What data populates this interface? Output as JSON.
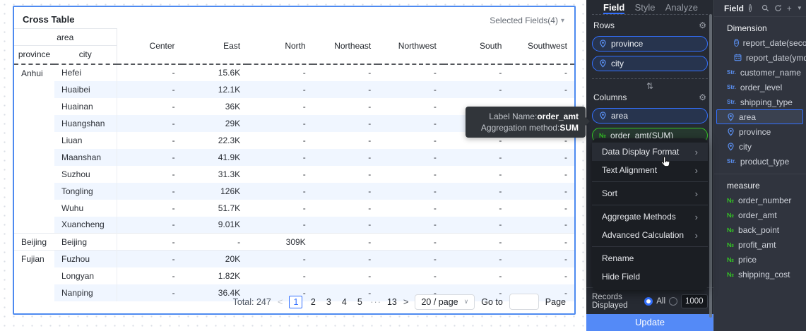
{
  "colors": {
    "accent_blue": "#3370ff",
    "measure_green": "#34c724",
    "update_button": "#548af7",
    "row_stripe": "#f0f6ff",
    "card_border": "#4d8af0",
    "panel_dark": "#262a32",
    "panel_right": "#30343e",
    "menu_bg": "#1b1e23"
  },
  "icons": {
    "caret_down": "▾",
    "select_caret": "∨",
    "swap": "⇅",
    "gear": "⚙",
    "plus": "+",
    "filter": "▼",
    "prev": "<",
    "next": ">",
    "info": "i",
    "str": "Str.",
    "num": "№",
    "clock_s": "S"
  },
  "table": {
    "title": "Cross Table",
    "selected_fields_label": "Selected Fields(4)",
    "corner_group": "area",
    "row_headers": [
      "province",
      "city"
    ],
    "data_columns": [
      "Center",
      "East",
      "North",
      "Northeast",
      "Northwest",
      "South",
      "Southwest"
    ],
    "groups": [
      {
        "province": "Anhui",
        "rows": [
          {
            "city": "Hefei",
            "values": [
              "-",
              "15.6K",
              "-",
              "-",
              "-",
              "-",
              "-"
            ]
          },
          {
            "city": "Huaibei",
            "values": [
              "-",
              "12.1K",
              "-",
              "-",
              "-",
              "-",
              "-"
            ]
          },
          {
            "city": "Huainan",
            "values": [
              "-",
              "36K",
              "-",
              "-",
              "-",
              "-",
              "-"
            ]
          },
          {
            "city": "Huangshan",
            "values": [
              "-",
              "29K",
              "-",
              "-",
              "-",
              "-",
              "-"
            ]
          },
          {
            "city": "Liuan",
            "values": [
              "-",
              "22.3K",
              "-",
              "-",
              "-",
              "-",
              "-"
            ]
          },
          {
            "city": "Maanshan",
            "values": [
              "-",
              "41.9K",
              "-",
              "-",
              "-",
              "-",
              "-"
            ]
          },
          {
            "city": "Suzhou",
            "values": [
              "-",
              "31.3K",
              "-",
              "-",
              "-",
              "-",
              "-"
            ]
          },
          {
            "city": "Tongling",
            "values": [
              "-",
              "126K",
              "-",
              "-",
              "-",
              "-",
              "-"
            ]
          },
          {
            "city": "Wuhu",
            "values": [
              "-",
              "51.7K",
              "-",
              "-",
              "-",
              "-",
              "-"
            ]
          },
          {
            "city": "Xuancheng",
            "values": [
              "-",
              "9.01K",
              "-",
              "-",
              "-",
              "-",
              "-"
            ]
          }
        ]
      },
      {
        "province": "Beijing",
        "rows": [
          {
            "city": "Beijing",
            "values": [
              "-",
              "-",
              "309K",
              "-",
              "-",
              "-",
              "-"
            ]
          }
        ]
      },
      {
        "province": "Fujian",
        "rows": [
          {
            "city": "Fuzhou",
            "values": [
              "-",
              "20K",
              "-",
              "-",
              "-",
              "-",
              "-"
            ]
          },
          {
            "city": "Longyan",
            "values": [
              "-",
              "1.82K",
              "-",
              "-",
              "-",
              "-",
              "-"
            ]
          },
          {
            "city": "Nanping",
            "values": [
              "-",
              "36.4K",
              "-",
              "-",
              "-",
              "-",
              "-"
            ]
          }
        ]
      }
    ]
  },
  "pagination": {
    "total": "Total: 247",
    "pages": [
      "1",
      "2",
      "3",
      "4",
      "5",
      "···",
      "13"
    ],
    "active_page": "1",
    "page_size": "20 / page",
    "goto_label": "Go to",
    "goto_value": "",
    "page_suffix": "Page"
  },
  "tooltip": {
    "line1_label": "Label Name:",
    "line1_value": "order_amt",
    "line2_label": "Aggregation method:",
    "line2_value": "SUM"
  },
  "mid_panel": {
    "tabs": [
      {
        "label": "Field",
        "active": true
      },
      {
        "label": "Style",
        "active": false
      },
      {
        "label": "Analyze",
        "active": false
      }
    ],
    "rows_section": {
      "label": "Rows",
      "pills": [
        {
          "label": "province",
          "icon": "pin",
          "color": "blue"
        },
        {
          "label": "city",
          "icon": "pin",
          "color": "blue"
        }
      ]
    },
    "columns_section": {
      "label": "Columns",
      "pills": [
        {
          "label": "area",
          "icon": "pin",
          "color": "blue"
        },
        {
          "label": "order_amt(SUM)",
          "icon": "num",
          "color": "green"
        }
      ]
    },
    "menu": [
      {
        "label": "Data Display Format",
        "submenu": true,
        "hover": true
      },
      {
        "label": "Text Alignment",
        "submenu": true
      },
      {
        "divider": true
      },
      {
        "label": "Sort",
        "submenu": true
      },
      {
        "divider": true
      },
      {
        "label": "Aggregate Methods",
        "submenu": true
      },
      {
        "label": "Advanced Calculation",
        "submenu": true
      },
      {
        "divider": true
      },
      {
        "label": "Rename"
      },
      {
        "label": "Hide Field"
      }
    ],
    "records": {
      "label": "Records Displayed",
      "options": [
        {
          "label": "All",
          "selected": true
        },
        {
          "label": "",
          "selected": false
        }
      ],
      "input_value": "1000"
    },
    "update_label": "Update"
  },
  "fields_panel": {
    "title": "Field",
    "sections": [
      {
        "label": "Dimension",
        "items": [
          {
            "label": "report_date(second)",
            "icon": "clock",
            "indent": true
          },
          {
            "label": "report_date(ymdh...",
            "icon": "calendar",
            "indent": true
          },
          {
            "label": "customer_name",
            "icon": "str"
          },
          {
            "label": "order_level",
            "icon": "str"
          },
          {
            "label": "shipping_type",
            "icon": "str"
          },
          {
            "label": "area",
            "icon": "pin",
            "selected": true
          },
          {
            "label": "province",
            "icon": "pin"
          },
          {
            "label": "city",
            "icon": "pin"
          },
          {
            "label": "product_type",
            "icon": "str"
          }
        ]
      },
      {
        "label": "measure",
        "items": [
          {
            "label": "order_number",
            "icon": "num"
          },
          {
            "label": "order_amt",
            "icon": "num"
          },
          {
            "label": "back_point",
            "icon": "num"
          },
          {
            "label": "profit_amt",
            "icon": "num"
          },
          {
            "label": "price",
            "icon": "num"
          },
          {
            "label": "shipping_cost",
            "icon": "num"
          }
        ]
      }
    ]
  }
}
